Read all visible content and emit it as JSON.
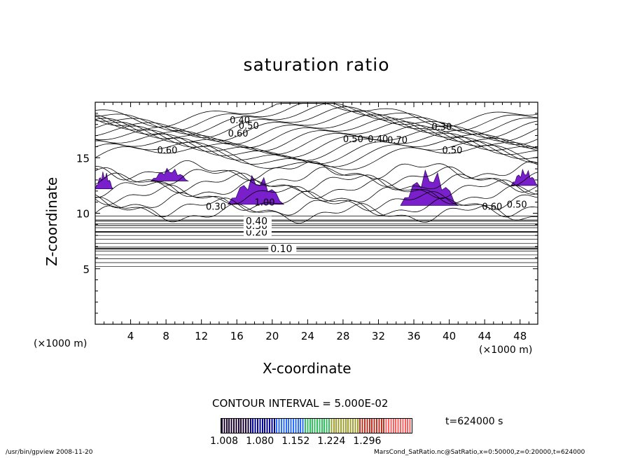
{
  "chart_data": {
    "type": "contour",
    "title": "saturation ratio",
    "xlabel": "X-coordinate",
    "ylabel": "Z-coordinate",
    "x_unit": "(×1000 m)",
    "z_unit": "(×1000 m)",
    "xlim": [
      0,
      50
    ],
    "ylim": [
      0,
      20
    ],
    "x_ticks": [
      4,
      8,
      12,
      16,
      20,
      24,
      28,
      32,
      36,
      40,
      44,
      48
    ],
    "y_ticks": [
      5,
      10,
      15
    ],
    "contour_lines": [
      {
        "level": "0.10",
        "z": 6.8
      },
      {
        "level": "0.20",
        "z": 8.3
      },
      {
        "level": "0.30",
        "z": 8.9
      },
      {
        "level": "0.40",
        "z": 9.3
      }
    ],
    "upper_contour_labels": [
      "0.40",
      "0.50",
      "0.60",
      "0.30",
      "0.70",
      "0.50",
      "0.40",
      "0.60",
      "0.50",
      "0.60",
      "0.50",
      "0.30",
      "1.00"
    ],
    "shaded_regions": [
      {
        "x": [
          0.0,
          2.0
        ],
        "z": [
          12.2,
          13.8
        ]
      },
      {
        "x": [
          6.3,
          10.5
        ],
        "z": [
          12.9,
          14.1
        ]
      },
      {
        "x": [
          15.0,
          21.3
        ],
        "z": [
          10.8,
          13.5
        ]
      },
      {
        "x": [
          34.5,
          41.0
        ],
        "z": [
          10.7,
          14.0
        ]
      },
      {
        "x": [
          47.0,
          50.0
        ],
        "z": [
          12.5,
          14.0
        ]
      }
    ],
    "contour_interval": "CONTOUR INTERVAL = 5.000E-02",
    "colorbar": {
      "range": [
        1.008,
        1.296
      ],
      "tick_labels": [
        "1.008",
        "1.080",
        "1.152",
        "1.224",
        "1.296"
      ],
      "colors": [
        "#1a0033",
        "#0000a0",
        "#2a6cff",
        "#30c060",
        "#a0a030",
        "#c03020",
        "#ff6060"
      ]
    },
    "annotation_time": "t=624000 s"
  },
  "footer": {
    "left": "/usr/bin/gpview   2008-11-20",
    "right": "MarsCond_SatRatio.nc@SatRatio,x=0:50000,z=0:20000,t=624000"
  },
  "colors": {
    "fill": "#7a1fcc",
    "line": "#000000"
  }
}
